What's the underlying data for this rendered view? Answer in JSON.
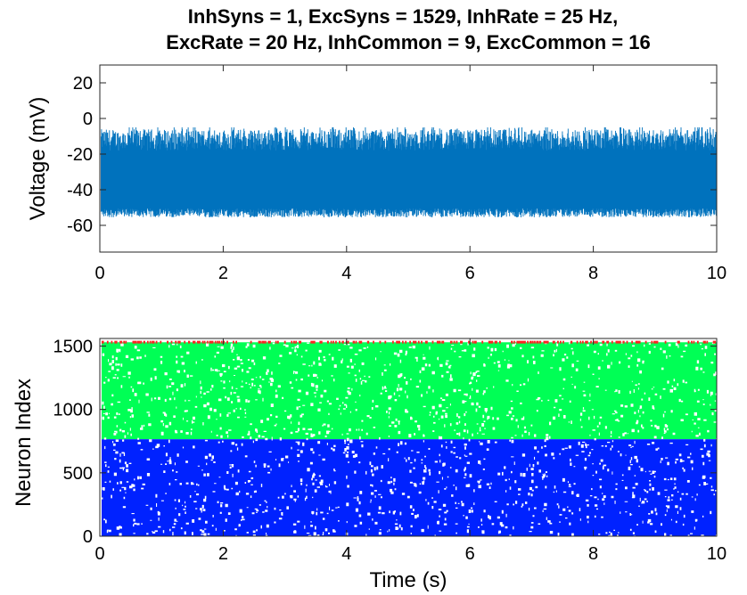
{
  "title_line1": "InhSyns = 1, ExcSyns = 1529, InhRate = 25 Hz,",
  "title_line2": "ExcRate = 20 Hz, InhCommon = 9, ExcCommon = 16",
  "colors": {
    "trace": "#0072bd",
    "exc_low": "#0022ff",
    "exc_high": "#00ff55",
    "inh": "#ff2222",
    "axis": "#262626"
  },
  "chart_data": [
    {
      "type": "line",
      "title": "InhSyns = 1, ExcSyns = 1529, InhRate = 25 Hz, ExcRate = 20 Hz, InhCommon = 9, ExcCommon = 16",
      "xlabel": "",
      "ylabel": "Voltage (mV)",
      "xlim": [
        0,
        10
      ],
      "ylim": [
        -75,
        30
      ],
      "xticks": [
        0,
        2,
        4,
        6,
        8,
        10
      ],
      "yticks": [
        -60,
        -40,
        -20,
        0,
        20
      ],
      "grid": false,
      "series": [
        {
          "values_summary": "dense membrane-voltage trace fluctuating between about -55 mV and -10 mV for 10 s, with an initial spike to about 30 mV and dip to about -72 mV at t = 0",
          "band": {
            "lower_mean": -53,
            "upper_mean": -12,
            "min": -57,
            "max": -5
          },
          "initial_spike": {
            "x": 0,
            "max": 30,
            "min": -72
          }
        }
      ]
    },
    {
      "type": "scatter",
      "title": "",
      "xlabel": "Time (s)",
      "ylabel": "Neuron Index",
      "xlim": [
        0,
        10
      ],
      "ylim": [
        0,
        1560
      ],
      "xticks": [
        0,
        2,
        4,
        6,
        8,
        10
      ],
      "yticks": [
        0,
        500,
        1000,
        1500
      ],
      "grid": false,
      "series": [
        {
          "color": "#0022ff",
          "index_range": [
            1,
            765
          ],
          "time_range": [
            0,
            10
          ]
        },
        {
          "color": "#00ff55",
          "index_range": [
            766,
            1530
          ],
          "time_range": [
            0,
            10
          ]
        },
        {
          "color": "#ff2222",
          "index_range": [
            1531,
            1531
          ],
          "time_range": [
            0,
            10
          ]
        }
      ]
    }
  ]
}
